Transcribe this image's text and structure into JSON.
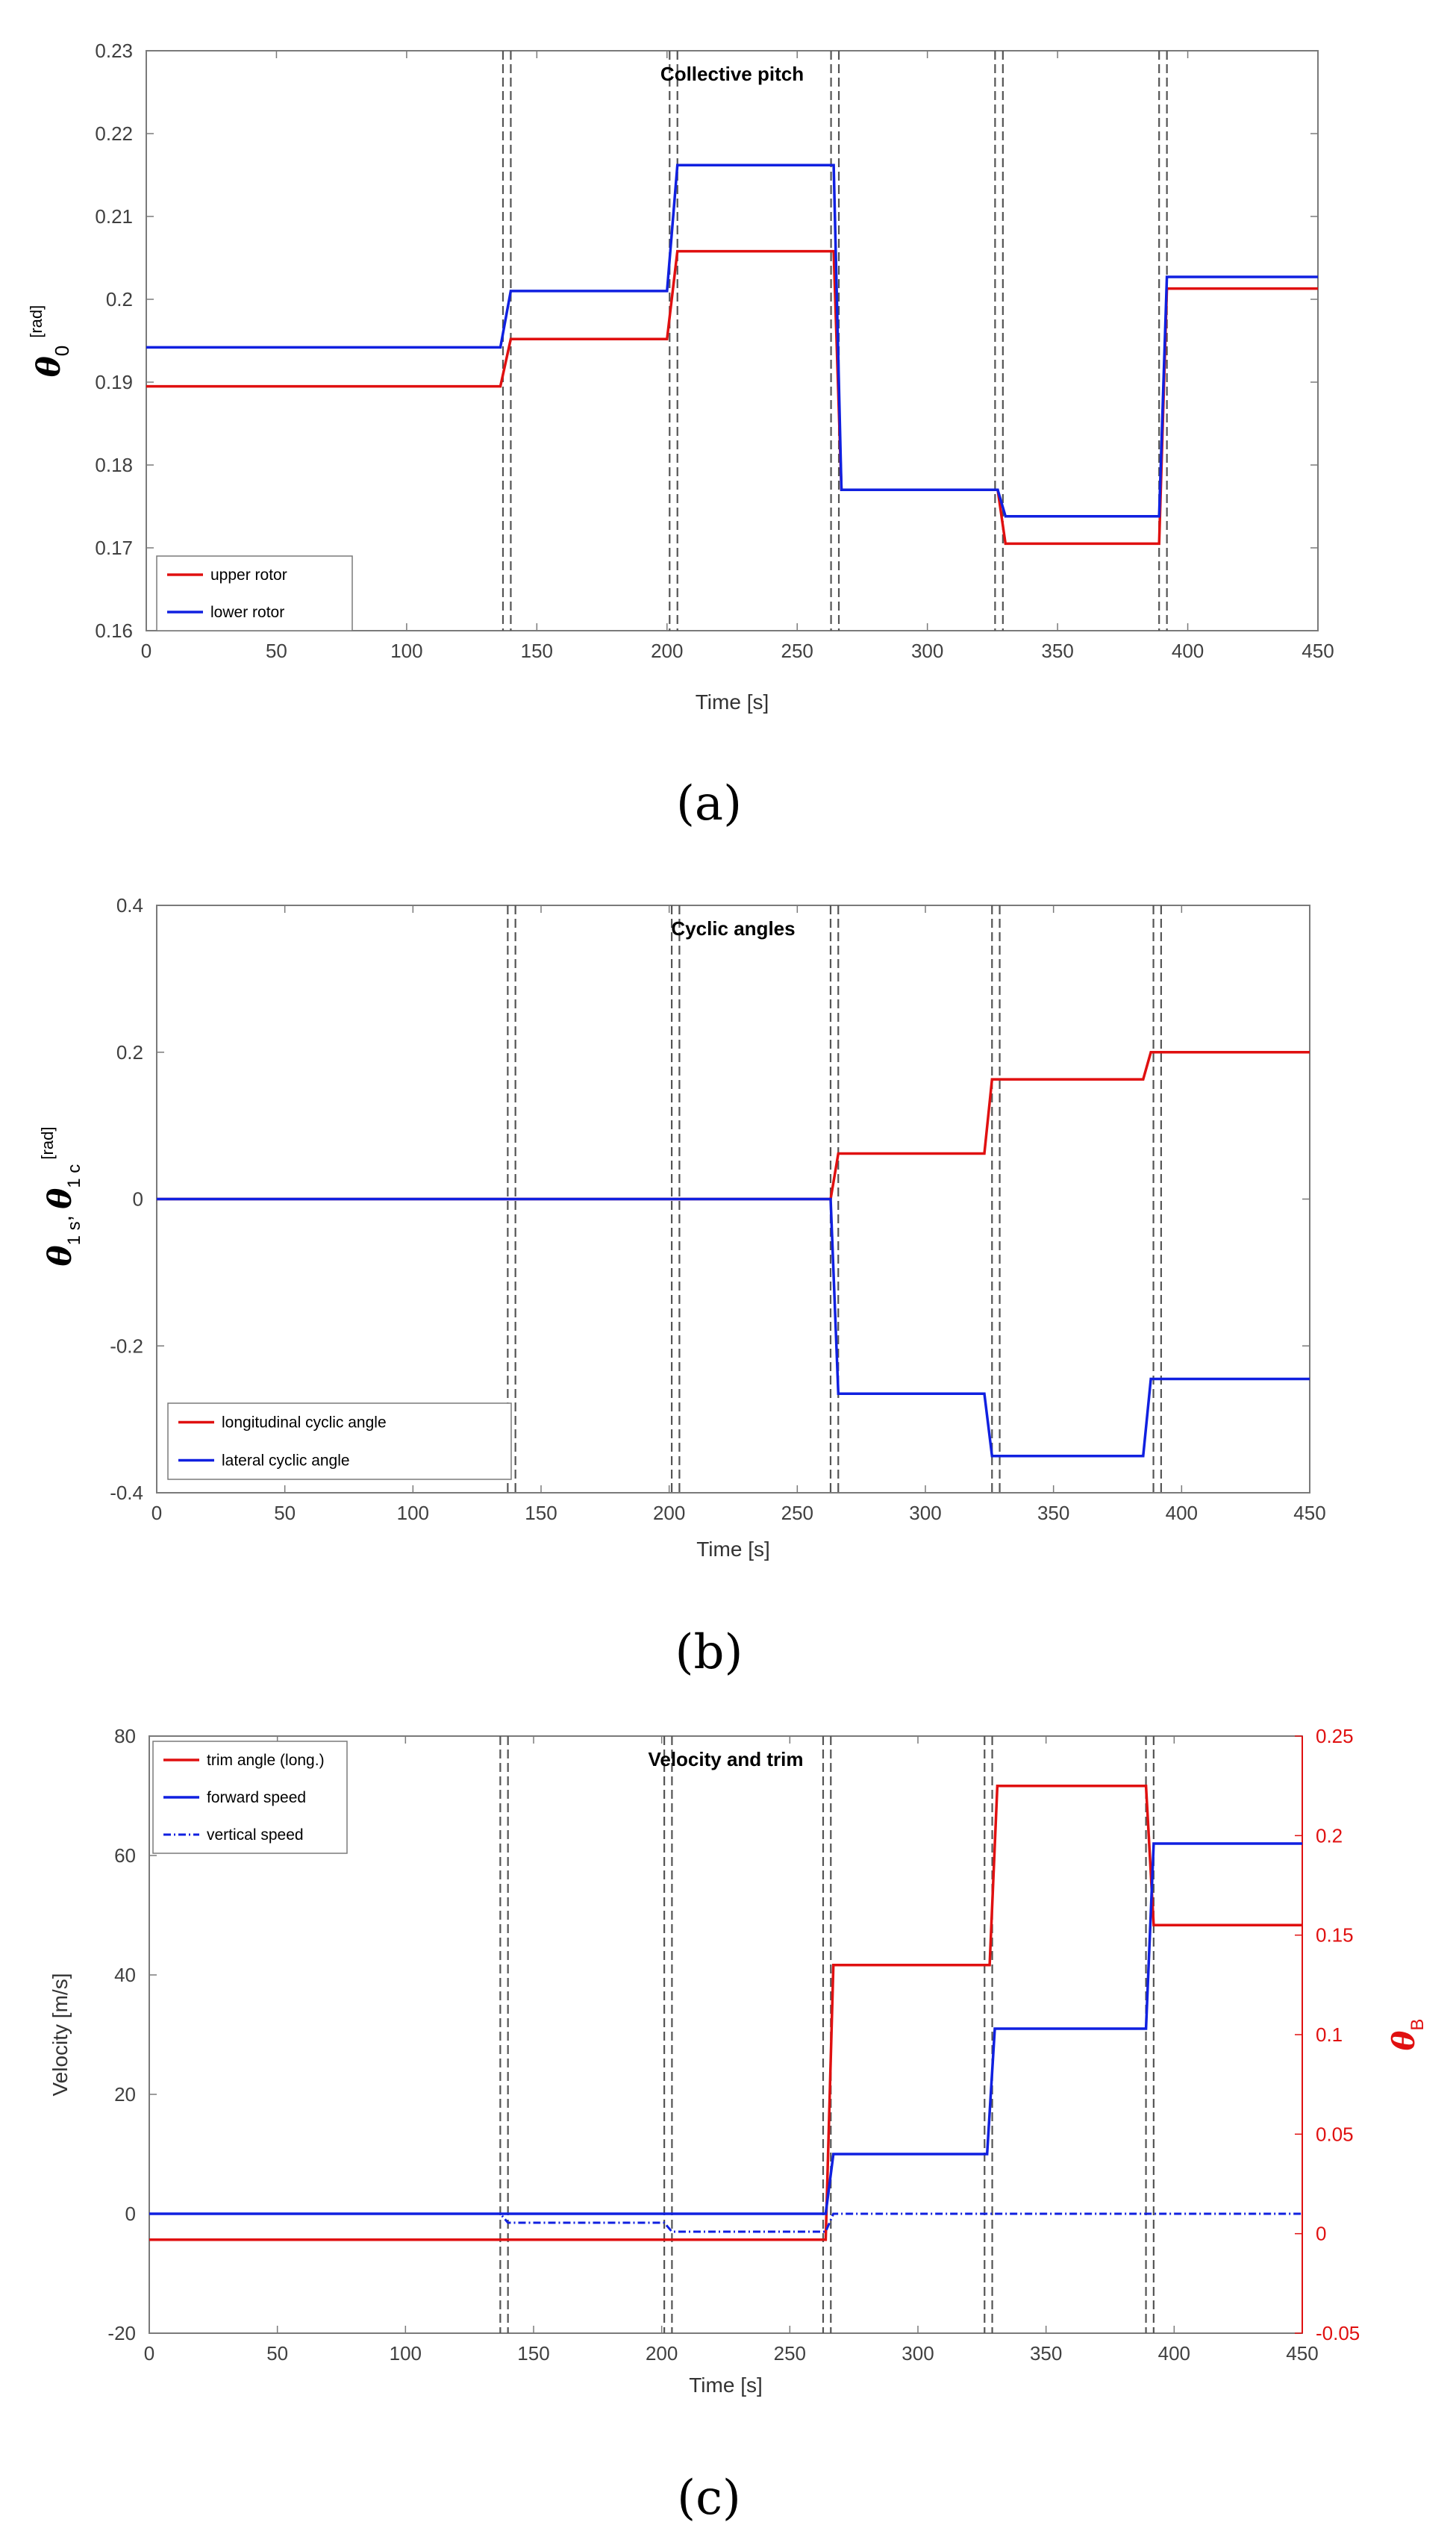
{
  "chart_data": [
    {
      "type": "line",
      "panel": "a",
      "title": "Collective pitch",
      "xlabel": "Time [s]",
      "ylabel_symbol": "θ",
      "ylabel_sub": "0",
      "ylabel_unit": "[rad]",
      "xlim": [
        0,
        450
      ],
      "ylim": [
        0.16,
        0.23
      ],
      "xticks": [
        "0",
        "50",
        "100",
        "150",
        "200",
        "250",
        "300",
        "350",
        "400",
        "450"
      ],
      "yticks": [
        "0.16",
        "0.17",
        "0.18",
        "0.19",
        "0.2",
        "0.21",
        "0.22",
        "0.23"
      ],
      "ytick_values": [
        0.16,
        0.17,
        0.18,
        0.19,
        0.2,
        0.21,
        0.22,
        0.23
      ],
      "legend_position": "bottom-left",
      "event_lines": [
        137,
        140,
        201,
        204,
        263,
        266,
        326,
        329,
        389,
        392
      ],
      "series": [
        {
          "name": "upper rotor",
          "color": "#e01010",
          "x": [
            0,
            136,
            140,
            200,
            204,
            264,
            267,
            327,
            330,
            389,
            392,
            450
          ],
          "y": [
            0.1895,
            0.1895,
            0.1952,
            0.1952,
            0.2058,
            0.2058,
            0.177,
            0.177,
            0.1705,
            0.1705,
            0.2013,
            0.2013
          ]
        },
        {
          "name": "lower rotor",
          "color": "#1020e0",
          "x": [
            0,
            136,
            140,
            200,
            204,
            264,
            267,
            327,
            330,
            389,
            392,
            450
          ],
          "y": [
            0.1942,
            0.1942,
            0.201,
            0.201,
            0.2162,
            0.2162,
            0.177,
            0.177,
            0.1738,
            0.1738,
            0.2027,
            0.2027
          ]
        }
      ]
    },
    {
      "type": "line",
      "panel": "b",
      "title": "Cyclic angles",
      "xlabel": "Time [s]",
      "ylabel_symbol1": "θ",
      "ylabel_sub1": "1 s",
      "ylabel_sep": ", ",
      "ylabel_symbol2": "θ",
      "ylabel_sub2": "1 c",
      "ylabel_unit": "[rad]",
      "xlim": [
        0,
        450
      ],
      "ylim": [
        -0.4,
        0.4
      ],
      "xticks": [
        "0",
        "50",
        "100",
        "150",
        "200",
        "250",
        "300",
        "350",
        "400",
        "450"
      ],
      "yticks": [
        "-0.4",
        "-0.2",
        "0",
        "0.2",
        "0.4"
      ],
      "ytick_values": [
        -0.4,
        -0.2,
        0,
        0.2,
        0.4
      ],
      "legend_position": "bottom-left",
      "event_lines": [
        137,
        140,
        201,
        204,
        263,
        266,
        326,
        329,
        389,
        392
      ],
      "series": [
        {
          "name": "longitudinal cyclic angle",
          "color": "#e01010",
          "x": [
            0,
            263,
            266,
            323,
            326,
            385,
            388,
            450
          ],
          "y": [
            0,
            0,
            0.062,
            0.062,
            0.163,
            0.163,
            0.2,
            0.2
          ]
        },
        {
          "name": "lateral cyclic angle",
          "color": "#1020e0",
          "x": [
            0,
            263,
            266,
            323,
            326,
            385,
            388,
            450
          ],
          "y": [
            0,
            0,
            -0.265,
            -0.265,
            -0.35,
            -0.35,
            -0.245,
            -0.245
          ]
        }
      ]
    },
    {
      "type": "line",
      "panel": "c",
      "title": "Velocity and trim",
      "xlabel": "Time [s]",
      "ylabel": "Velocity [m/s]",
      "ylabel_right_symbol": "θ",
      "ylabel_right_sub": "B",
      "xlim": [
        0,
        450
      ],
      "ylim": [
        -20,
        80
      ],
      "ylim_right": [
        -0.05,
        0.25
      ],
      "xticks": [
        "0",
        "50",
        "100",
        "150",
        "200",
        "250",
        "300",
        "350",
        "400",
        "450"
      ],
      "yticks": [
        "-20",
        "0",
        "20",
        "40",
        "60",
        "80"
      ],
      "ytick_values": [
        -20,
        0,
        20,
        40,
        60,
        80
      ],
      "yticks_right": [
        "-0.05",
        "0",
        "0.05",
        "0.1",
        "0.15",
        "0.2",
        "0.25"
      ],
      "ytick_right_values": [
        -0.05,
        0,
        0.05,
        0.1,
        0.15,
        0.2,
        0.25
      ],
      "legend_position": "top-left",
      "event_lines": [
        137,
        140,
        201,
        204,
        263,
        266,
        326,
        329,
        389,
        392
      ],
      "series": [
        {
          "name": "trim angle (long.)",
          "color": "#e01010",
          "axis": "right",
          "style": "solid",
          "x": [
            0,
            264,
            267,
            328,
            331,
            389,
            392,
            450
          ],
          "y": [
            -0.003,
            -0.003,
            0.135,
            0.135,
            0.225,
            0.225,
            0.155,
            0.155
          ]
        },
        {
          "name": "forward speed",
          "color": "#1020e0",
          "axis": "left",
          "style": "solid",
          "x": [
            0,
            264,
            267,
            327,
            330,
            389,
            392,
            450
          ],
          "y": [
            0,
            0,
            10,
            10,
            31,
            31,
            62,
            62
          ]
        },
        {
          "name": "vertical speed",
          "color": "#1020e0",
          "axis": "left",
          "style": "dashdot",
          "x": [
            0,
            137,
            140,
            201,
            204,
            264,
            267,
            450
          ],
          "y": [
            0,
            0,
            -1.5,
            -1.5,
            -3.0,
            -3.0,
            0,
            0
          ]
        }
      ]
    }
  ],
  "captions": {
    "a": "(a)",
    "b": "(b)",
    "c": "(c)"
  }
}
